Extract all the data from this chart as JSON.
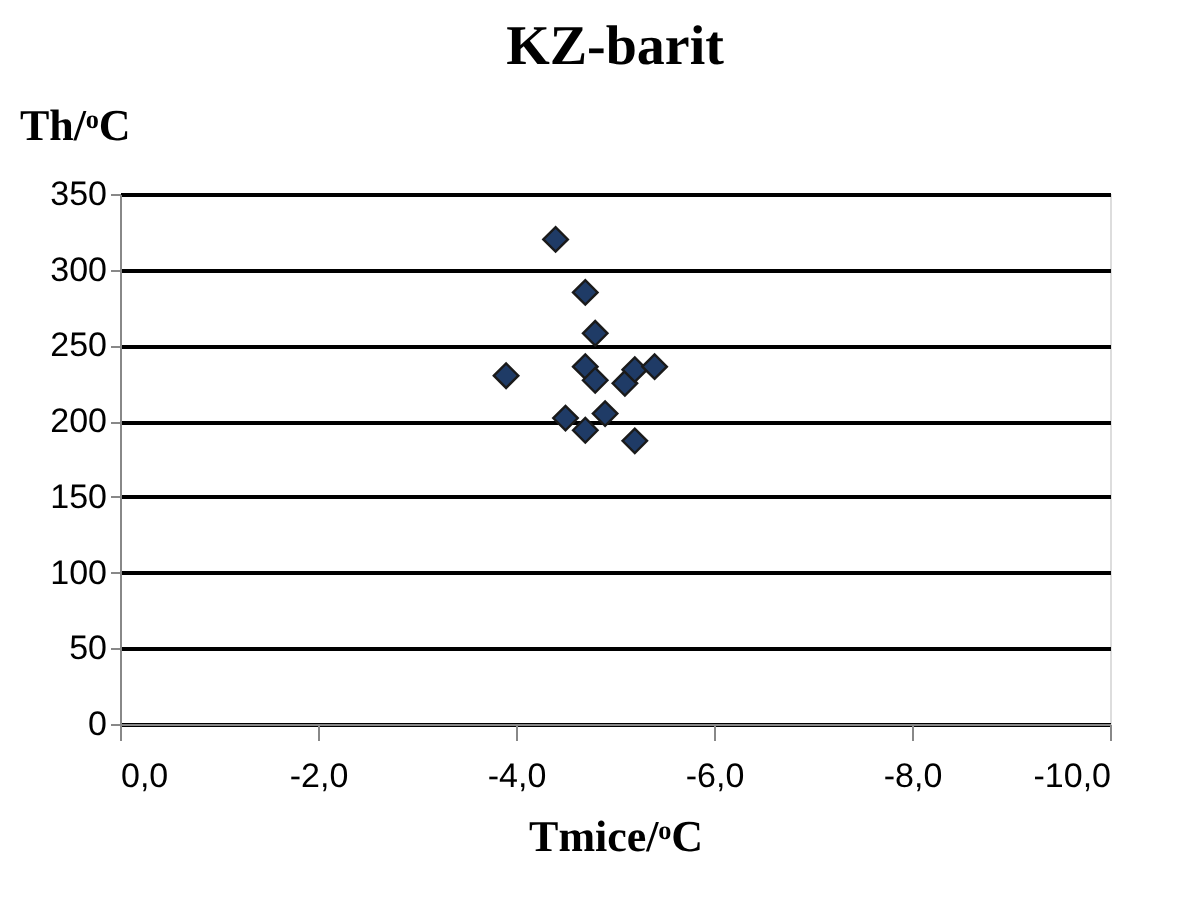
{
  "chart_data": {
    "type": "scatter",
    "title": "KZ-barit",
    "xlabel": "Tmice/ᵒC",
    "ylabel": "Th/ᵒC",
    "x": [
      -4.4,
      -4.7,
      -4.8,
      -3.9,
      -4.7,
      -4.8,
      -5.1,
      -5.2,
      -5.4,
      -4.5,
      -4.9,
      -4.7,
      -5.2
    ],
    "values": [
      320,
      285,
      258,
      230,
      236,
      227,
      225,
      234,
      236,
      202,
      205,
      194,
      187
    ],
    "color": "#1f3b66",
    "marker": "diamond",
    "grid": "y",
    "xlim": [
      0,
      -10
    ],
    "ylim": [
      0,
      350
    ],
    "xticks": [
      {
        "value": 0,
        "label": "0,0"
      },
      {
        "value": -2,
        "label": "-2,0"
      },
      {
        "value": -4,
        "label": "-4,0"
      },
      {
        "value": -6,
        "label": "-6,0"
      },
      {
        "value": -8,
        "label": "-8,0"
      },
      {
        "value": -10,
        "label": "-10,0"
      }
    ],
    "yticks": [
      0,
      50,
      100,
      150,
      200,
      250,
      300,
      350
    ]
  }
}
